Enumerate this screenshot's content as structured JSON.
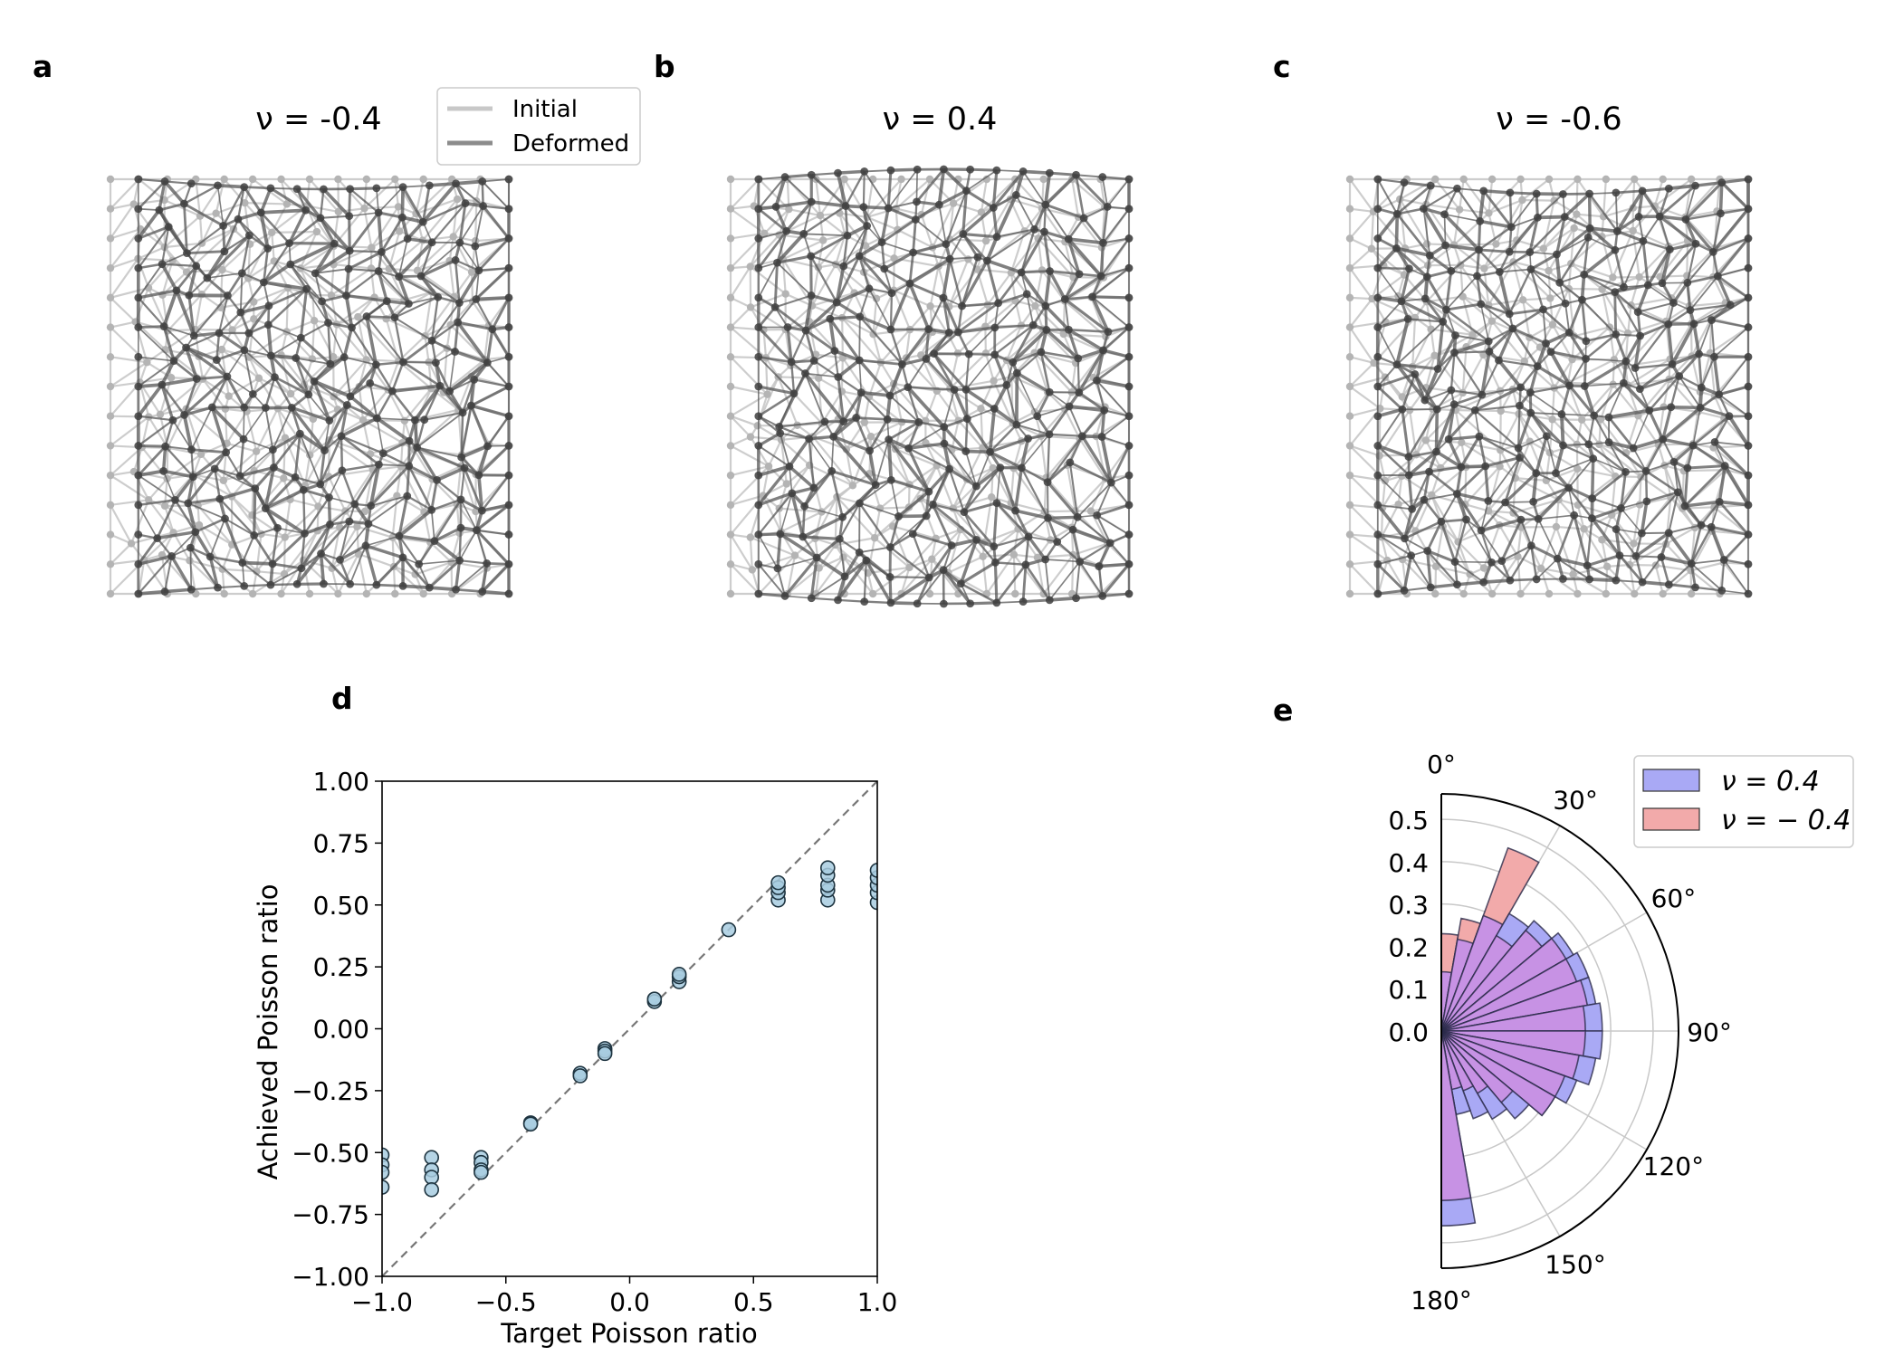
{
  "panels": {
    "a": {
      "letter": "a",
      "title": "ν = -0.4",
      "poisson": -0.4,
      "seed": 11
    },
    "b": {
      "letter": "b",
      "title": "ν = 0.4",
      "poisson": 0.4,
      "seed": 23
    },
    "c": {
      "letter": "c",
      "title": "ν = -0.6",
      "poisson": -0.6,
      "seed": 37
    },
    "d": {
      "letter": "d"
    },
    "e": {
      "letter": "e"
    }
  },
  "network_legend": {
    "entries": [
      {
        "label": "Initial",
        "color": "#c8c8c8"
      },
      {
        "label": "Deformed",
        "color": "#8c8c8c"
      }
    ]
  },
  "colors": {
    "edge_initial": "#c8c8c8",
    "edge_deformed": "#555555",
    "node_initial": "#b4b4b4",
    "node_deformed": "#3f3f3f",
    "scatter_fill": "#a8cde0",
    "scatter_edge": "#1e3440",
    "polar_blue": "#a9a9f5",
    "polar_red": "#f2aaaa",
    "polar_overlap": "#c792e4"
  },
  "chart_data": [
    {
      "type": "scatter",
      "panel": "d",
      "xlabel": "Target Poisson ratio",
      "ylabel": "Achieved Poisson ratio",
      "xlim": [
        -1.0,
        1.0
      ],
      "ylim": [
        -1.0,
        1.0
      ],
      "x_ticks": [
        "−1.0",
        "−0.5",
        "0.0",
        "0.5",
        "1.0"
      ],
      "x_tick_values": [
        -1.0,
        -0.5,
        0.0,
        0.5,
        1.0
      ],
      "y_ticks": [
        "−1.00",
        "−0.75",
        "−0.50",
        "−0.25",
        "0.00",
        "0.25",
        "0.50",
        "0.75",
        "1.00"
      ],
      "y_tick_values": [
        -1.0,
        -0.75,
        -0.5,
        -0.25,
        0.0,
        0.25,
        0.5,
        0.75,
        1.0
      ],
      "reference_line": "y = x (dashed)",
      "points": [
        {
          "x": -1.0,
          "y": -0.51
        },
        {
          "x": -1.0,
          "y": -0.55
        },
        {
          "x": -1.0,
          "y": -0.58
        },
        {
          "x": -1.0,
          "y": -0.64
        },
        {
          "x": -0.8,
          "y": -0.52
        },
        {
          "x": -0.8,
          "y": -0.57
        },
        {
          "x": -0.8,
          "y": -0.6
        },
        {
          "x": -0.8,
          "y": -0.65
        },
        {
          "x": -0.6,
          "y": -0.52
        },
        {
          "x": -0.6,
          "y": -0.54
        },
        {
          "x": -0.6,
          "y": -0.57
        },
        {
          "x": -0.6,
          "y": -0.58
        },
        {
          "x": -0.4,
          "y": -0.38
        },
        {
          "x": -0.4,
          "y": -0.385
        },
        {
          "x": -0.2,
          "y": -0.18
        },
        {
          "x": -0.2,
          "y": -0.19
        },
        {
          "x": -0.1,
          "y": -0.08
        },
        {
          "x": -0.1,
          "y": -0.09
        },
        {
          "x": -0.1,
          "y": -0.1
        },
        {
          "x": 0.1,
          "y": 0.11
        },
        {
          "x": 0.1,
          "y": 0.12
        },
        {
          "x": 0.2,
          "y": 0.19
        },
        {
          "x": 0.2,
          "y": 0.21
        },
        {
          "x": 0.2,
          "y": 0.22
        },
        {
          "x": 0.4,
          "y": 0.4
        },
        {
          "x": 0.6,
          "y": 0.52
        },
        {
          "x": 0.6,
          "y": 0.55
        },
        {
          "x": 0.6,
          "y": 0.57
        },
        {
          "x": 0.6,
          "y": 0.59
        },
        {
          "x": 0.8,
          "y": 0.52
        },
        {
          "x": 0.8,
          "y": 0.56
        },
        {
          "x": 0.8,
          "y": 0.58
        },
        {
          "x": 0.8,
          "y": 0.62
        },
        {
          "x": 0.8,
          "y": 0.65
        },
        {
          "x": 1.0,
          "y": 0.51
        },
        {
          "x": 1.0,
          "y": 0.55
        },
        {
          "x": 1.0,
          "y": 0.58
        },
        {
          "x": 1.0,
          "y": 0.61
        },
        {
          "x": 1.0,
          "y": 0.64
        }
      ]
    },
    {
      "type": "polar_histogram",
      "panel": "e",
      "theta_range_deg": [
        0,
        180
      ],
      "theta_ticks": [
        "0°",
        "30°",
        "60°",
        "90°",
        "120°",
        "150°",
        "180°"
      ],
      "theta_tick_values": [
        0,
        30,
        60,
        90,
        120,
        150,
        180
      ],
      "r_ticks": [
        "0.0",
        "0.1",
        "0.2",
        "0.3",
        "0.4",
        "0.5"
      ],
      "r_tick_values": [
        0.0,
        0.1,
        0.2,
        0.3,
        0.4,
        0.5
      ],
      "rlim": [
        0,
        0.56
      ],
      "legend": {
        "position": "upper right"
      },
      "bin_edges_deg": [
        0,
        10,
        20,
        30,
        40,
        50,
        60,
        70,
        80,
        90,
        100,
        110,
        120,
        130,
        140,
        150,
        160,
        170,
        180
      ],
      "series": [
        {
          "name": "ν = 0.4",
          "label_main": "ν = 0.4",
          "color": "#a9a9f5",
          "values": [
            0.14,
            0.22,
            0.29,
            0.32,
            0.34,
            0.36,
            0.37,
            0.37,
            0.38,
            0.38,
            0.37,
            0.34,
            0.31,
            0.27,
            0.24,
            0.22,
            0.2,
            0.46
          ]
        },
        {
          "name": "ν = −0.4",
          "label_main": "ν = − 0.4",
          "color": "#f2aaaa",
          "values": [
            0.23,
            0.27,
            0.46,
            0.26,
            0.31,
            0.34,
            0.34,
            0.35,
            0.34,
            0.34,
            0.33,
            0.31,
            0.31,
            0.22,
            0.17,
            0.15,
            0.14,
            0.4
          ]
        }
      ]
    }
  ]
}
